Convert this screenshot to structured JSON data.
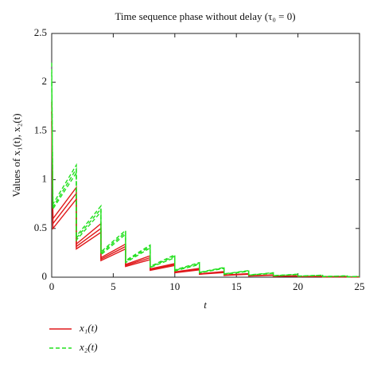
{
  "chart_data": {
    "type": "line",
    "title": "Time sequence phase without delay (τ₀ = 0)",
    "xlabel": "t",
    "ylabel": "Values of x₁(t), x₂(t)",
    "x": [
      0,
      0.1,
      2,
      2,
      4,
      4,
      6,
      6,
      8,
      8,
      10,
      10,
      12,
      12,
      14,
      14,
      16,
      16,
      18,
      18,
      20,
      20,
      22,
      22,
      24,
      24,
      25
    ],
    "series": [
      {
        "name": "x₁(t)",
        "color": "#e0191b",
        "dashed": false,
        "curves": [
          [
            1.8,
            0.6,
            0.92,
            0.34,
            0.55,
            0.2,
            0.34,
            0.13,
            0.22,
            0.085,
            0.14,
            0.055,
            0.09,
            0.035,
            0.058,
            0.022,
            0.037,
            0.014,
            0.024,
            0.009,
            0.015,
            0.006,
            0.01,
            0.004,
            0.006,
            0.0025,
            0.003
          ],
          [
            1.7,
            0.55,
            0.86,
            0.315,
            0.5,
            0.185,
            0.315,
            0.12,
            0.2,
            0.078,
            0.13,
            0.05,
            0.082,
            0.032,
            0.053,
            0.02,
            0.033,
            0.013,
            0.022,
            0.0085,
            0.013,
            0.0055,
            0.009,
            0.0035,
            0.0055,
            0.0022,
            0.003
          ],
          [
            1.6,
            0.5,
            0.8,
            0.29,
            0.46,
            0.17,
            0.29,
            0.11,
            0.18,
            0.07,
            0.12,
            0.045,
            0.075,
            0.03,
            0.048,
            0.018,
            0.03,
            0.012,
            0.02,
            0.008,
            0.012,
            0.005,
            0.008,
            0.003,
            0.005,
            0.002,
            0.003
          ]
        ]
      },
      {
        "name": "x₂(t)",
        "color": "#22e01e",
        "dashed": true,
        "curves": [
          [
            2.2,
            0.75,
            1.15,
            0.42,
            0.73,
            0.26,
            0.48,
            0.17,
            0.33,
            0.11,
            0.23,
            0.075,
            0.15,
            0.05,
            0.1,
            0.034,
            0.068,
            0.023,
            0.046,
            0.016,
            0.031,
            0.011,
            0.021,
            0.007,
            0.014,
            0.005,
            0.008
          ],
          [
            2.1,
            0.72,
            1.11,
            0.4,
            0.7,
            0.245,
            0.46,
            0.16,
            0.315,
            0.105,
            0.215,
            0.07,
            0.14,
            0.047,
            0.095,
            0.032,
            0.064,
            0.021,
            0.043,
            0.015,
            0.029,
            0.0105,
            0.0195,
            0.0065,
            0.013,
            0.0045,
            0.0075
          ],
          [
            2.0,
            0.7,
            1.07,
            0.38,
            0.67,
            0.23,
            0.44,
            0.15,
            0.3,
            0.1,
            0.2,
            0.065,
            0.13,
            0.045,
            0.09,
            0.03,
            0.06,
            0.02,
            0.04,
            0.014,
            0.027,
            0.01,
            0.018,
            0.006,
            0.012,
            0.004,
            0.007
          ]
        ]
      }
    ],
    "xlim": [
      0,
      25
    ],
    "ylim": [
      0,
      2.5
    ],
    "xticks": [
      0,
      5,
      10,
      15,
      20,
      25
    ],
    "yticks": [
      0,
      0.5,
      1,
      1.5,
      2,
      2.5
    ],
    "grid": false
  }
}
